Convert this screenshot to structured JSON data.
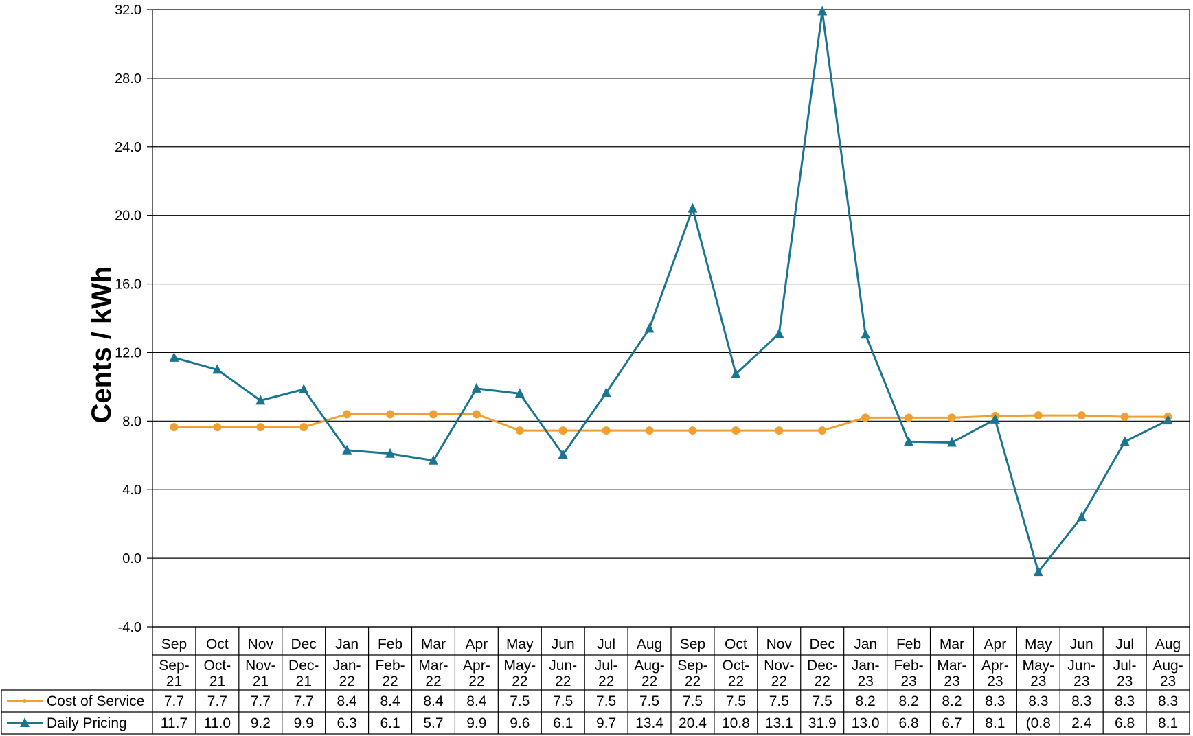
{
  "chart_data": {
    "type": "line",
    "ylabel": "Cents / kWh",
    "ylim": [
      -4,
      32
    ],
    "yticks": [
      "-4.0",
      "0.0",
      "4.0",
      "8.0",
      "12.0",
      "16.0",
      "20.0",
      "24.0",
      "28.0",
      "32.0"
    ],
    "grid": true,
    "legend": "table-left",
    "categories": [
      "Sep",
      "Oct",
      "Nov",
      "Dec",
      "Jan",
      "Feb",
      "Mar",
      "Apr",
      "May",
      "Jun",
      "Jul",
      "Aug",
      "Sep",
      "Oct",
      "Nov",
      "Dec",
      "Jan",
      "Feb",
      "Mar",
      "Apr",
      "May",
      "Jun",
      "Jul",
      "Aug"
    ],
    "period_labels": [
      "Sep-21",
      "Oct-21",
      "Nov-21",
      "Dec-21",
      "Jan-22",
      "Feb-22",
      "Mar-22",
      "Apr-22",
      "May-22",
      "Jun-22",
      "Jul-22",
      "Aug-22",
      "Sep-22",
      "Oct-22",
      "Nov-22",
      "Dec-22",
      "Jan-23",
      "Feb-23",
      "Mar-23",
      "Apr-23",
      "May-23",
      "Jun-23",
      "Jul-23",
      "Aug-23"
    ],
    "series": [
      {
        "name": "Cost of Service",
        "color": "#F0A030",
        "marker": "circle",
        "values": [
          7.65,
          7.65,
          7.65,
          7.65,
          8.4,
          8.4,
          8.4,
          8.4,
          7.45,
          7.45,
          7.45,
          7.45,
          7.45,
          7.45,
          7.45,
          7.45,
          8.2,
          8.2,
          8.2,
          8.3,
          8.33,
          8.33,
          8.25,
          8.25
        ],
        "table_values": [
          "7.7",
          "7.7",
          "7.7",
          "7.7",
          "8.4",
          "8.4",
          "8.4",
          "8.4",
          "7.5",
          "7.5",
          "7.5",
          "7.5",
          "7.5",
          "7.5",
          "7.5",
          "7.5",
          "8.2",
          "8.2",
          "8.2",
          "8.3",
          "8.3",
          "8.3",
          "8.3",
          "8.3"
        ]
      },
      {
        "name": "Daily Pricing",
        "color": "#1B7590",
        "marker": "triangle",
        "values": [
          11.7,
          11.0,
          9.2,
          9.85,
          6.3,
          6.1,
          5.7,
          9.9,
          9.6,
          6.05,
          9.65,
          13.4,
          20.4,
          10.75,
          13.1,
          31.9,
          13.05,
          6.8,
          6.75,
          8.1,
          -0.8,
          2.4,
          6.8,
          8.05
        ],
        "table_values": [
          "11.7",
          "11.0",
          "9.2",
          "9.9",
          "6.3",
          "6.1",
          "5.7",
          "9.9",
          "9.6",
          "6.1",
          "9.7",
          "13.4",
          "20.4",
          "10.8",
          "13.1",
          "31.9",
          "13.0",
          "6.8",
          "6.7",
          "8.1",
          "(0.8",
          "2.4",
          "6.8",
          "8.1"
        ]
      }
    ]
  }
}
